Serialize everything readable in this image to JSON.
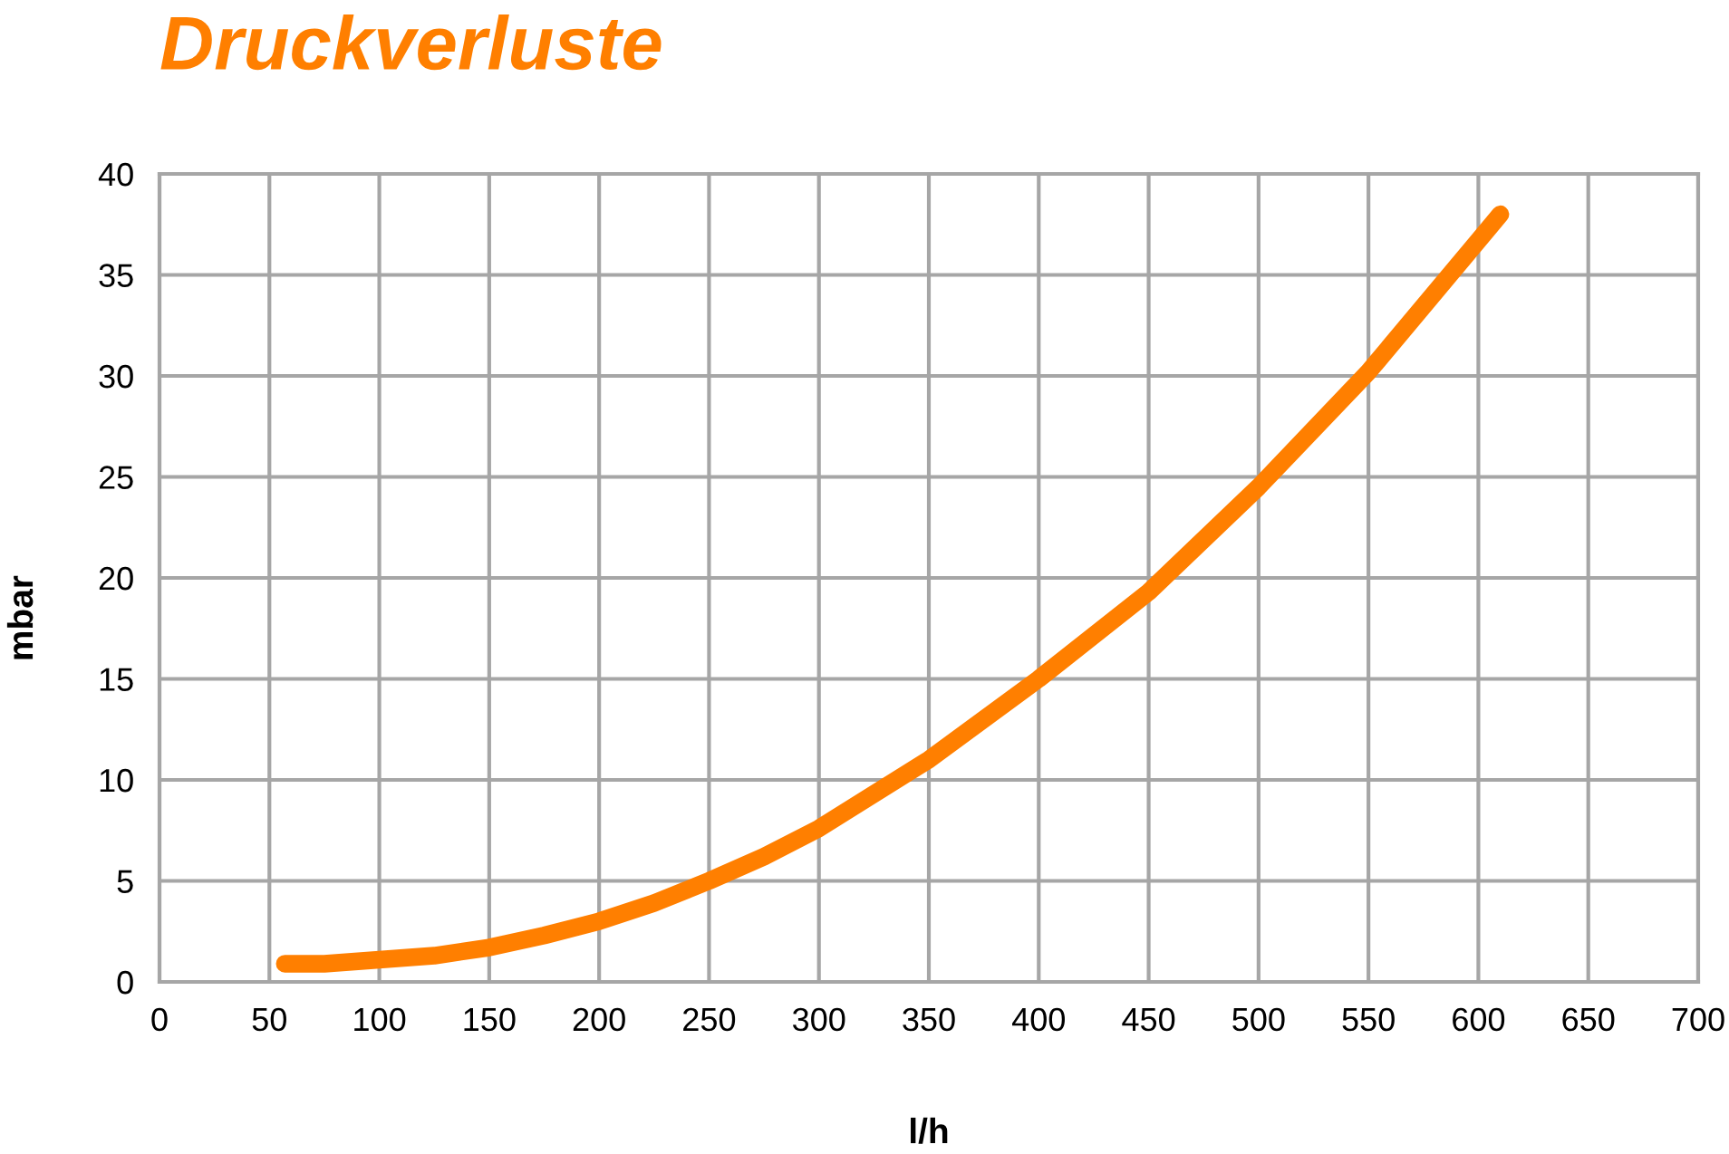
{
  "chart_data": {
    "type": "line",
    "title": "Druckverluste",
    "xlabel": "l/h",
    "ylabel": "mbar",
    "x": [
      57,
      75,
      100,
      125,
      150,
      175,
      200,
      225,
      250,
      275,
      300,
      350,
      400,
      450,
      500,
      550,
      610
    ],
    "series": [
      {
        "color": "#ff7f00",
        "values": [
          0.9,
          0.9,
          1.1,
          1.3,
          1.7,
          2.3,
          3.0,
          3.9,
          5.0,
          6.2,
          7.6,
          11.0,
          15.0,
          19.3,
          24.5,
          30.2,
          38.0
        ]
      }
    ],
    "xlim": [
      0,
      700
    ],
    "xticks": [
      0,
      50,
      100,
      150,
      200,
      250,
      300,
      350,
      400,
      450,
      500,
      550,
      600,
      650,
      700
    ],
    "ylim": [
      0,
      40
    ],
    "yticks": [
      0,
      5,
      10,
      15,
      20,
      25,
      30,
      35,
      40
    ],
    "grid": true,
    "marker": "none",
    "line_style": "solid"
  }
}
